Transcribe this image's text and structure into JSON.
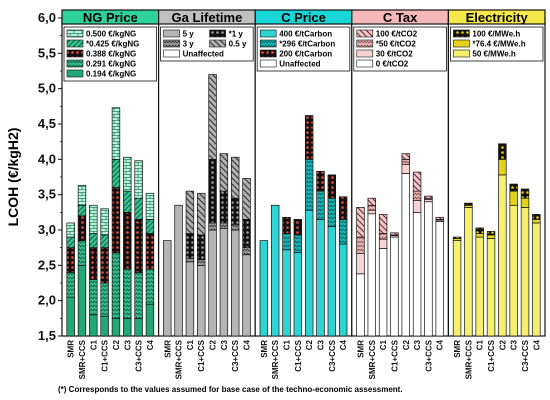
{
  "chart_data": {
    "type": "bar",
    "ylabel": "LCOH (€/kgH2)",
    "ylim": [
      1.5,
      6.0
    ],
    "yticks": [
      "6,0",
      "5,5",
      "5,0",
      "4,5",
      "4,0",
      "3,5",
      "3,0",
      "2,5",
      "2,0",
      "1,5"
    ],
    "grid": false,
    "categories": [
      "SMR",
      "SMR+CCS",
      "C1",
      "C1+CCS",
      "C2",
      "C3",
      "C3+CCS",
      "C4"
    ],
    "footnote": "(*) Corresponds to the values assumed for base case of the techno-economic assessment.",
    "panels": [
      {
        "title": "NG Price",
        "header_color": "#2ed39b",
        "legend": [
          {
            "label": "0.500 €/kgNG",
            "color": "#34b98a"
          },
          {
            "label": "*0.425 €/kgNG",
            "color": "#2ea57e"
          },
          {
            "label": "0.388 €/kgNG",
            "color": "#c0392b"
          },
          {
            "label": "0.291 €/kgNG",
            "color": "#3cb98e"
          },
          {
            "label": "0.194 €/kgNG",
            "color": "#5fd2aa"
          }
        ],
        "series": [
          {
            "name": "0.194 €/kgNG",
            "values": [
              2.05,
              2.5,
              1.8,
              1.78,
              1.75,
              1.75,
              1.75,
              1.95
            ]
          },
          {
            "name": "0.291 €/kgNG",
            "values": [
              2.4,
              2.85,
              2.3,
              2.25,
              2.68,
              2.45,
              2.4,
              2.45
            ]
          },
          {
            "name": "0.388 €/kgNG",
            "values": [
              2.75,
              3.2,
              2.75,
              2.75,
              3.6,
              3.25,
              3.15,
              2.95
            ]
          },
          {
            "name": "*0.425 €/kgNG",
            "values": [
              2.9,
              3.35,
              2.95,
              2.93,
              4.0,
              3.55,
              3.45,
              3.15
            ]
          },
          {
            "name": "0.500 €/kgNG",
            "values": [
              3.1,
              3.63,
              3.35,
              3.3,
              4.73,
              4.03,
              3.98,
              3.52
            ]
          }
        ]
      },
      {
        "title": "Ga Lifetime",
        "header_color": "#c0c0c0",
        "legend": [
          {
            "label": "5 y",
            "color": "#a8a8a8"
          },
          {
            "label": "*1 y",
            "color": "#1a1a1a"
          },
          {
            "label": "3 y",
            "color": "#8c8c8c"
          },
          {
            "label": "0.5 y",
            "color": "#9a9a9a"
          },
          {
            "label": "Unaffected",
            "color": "#ffffff"
          }
        ],
        "series": [
          {
            "name": "5 y",
            "values": [
              2.85,
              3.35,
              2.55,
              2.5,
              3.0,
              3.02,
              3.0,
              2.65
            ]
          },
          {
            "name": "3 y",
            "values": [
              2.85,
              3.35,
              2.6,
              2.58,
              3.1,
              3.1,
              3.08,
              2.75
            ]
          },
          {
            "name": "*1 y",
            "values": [
              2.85,
              3.35,
              2.95,
              2.93,
              4.0,
              3.55,
              3.45,
              3.15
            ]
          },
          {
            "name": "0.5 y",
            "values": [
              2.85,
              3.35,
              3.55,
              3.52,
              5.2,
              4.08,
              4.03,
              3.73
            ]
          }
        ]
      },
      {
        "title": "C Price",
        "header_color": "#19d6d6",
        "legend": [
          {
            "label": "400 €/tCarbon",
            "color": "#2dd6d6"
          },
          {
            "label": "*296 €/tCarbon",
            "color": "#1ab8b8"
          },
          {
            "label": "200 €/tCarbon",
            "color": "#c0392b"
          },
          {
            "label": "Unaffected",
            "color": "#ffffff"
          }
        ],
        "series": [
          {
            "name": "400 €/tCarbon",
            "values": [
              2.85,
              3.35,
              2.72,
              2.68,
              3.28,
              3.15,
              3.05,
              2.8
            ]
          },
          {
            "name": "*296 €/tCarbon",
            "values": [
              2.85,
              3.35,
              2.95,
              2.93,
              4.0,
              3.55,
              3.45,
              3.15
            ]
          },
          {
            "name": "200 €/tCarbon",
            "values": [
              2.85,
              3.35,
              3.18,
              3.15,
              4.62,
              3.83,
              3.78,
              3.47
            ]
          }
        ]
      },
      {
        "title": "C Tax",
        "header_color": "#f5b8b8",
        "legend": [
          {
            "label": "100 €/tCO2",
            "color": "#f2c8c8"
          },
          {
            "label": "*50 €/tCO2",
            "color": "#e0b0b0"
          },
          {
            "label": "30 €/tCO2",
            "color": "#f4cccc"
          },
          {
            "label": "0 €/tCO2",
            "color": "#ffffff"
          }
        ],
        "series": [
          {
            "name": "0 €/tCO2",
            "values": [
              2.38,
              3.23,
              2.74,
              2.9,
              3.8,
              3.25,
              3.4,
              3.12
            ]
          },
          {
            "name": "30 €/tCO2",
            "values": [
              2.67,
              3.28,
              2.87,
              2.92,
              3.93,
              3.42,
              3.43,
              3.14
            ]
          },
          {
            "name": "*50 €/tCO2",
            "values": [
              2.9,
              3.35,
              2.95,
              2.93,
              4.0,
              3.55,
              3.45,
              3.15
            ]
          },
          {
            "name": "100 €/tCO2",
            "values": [
              3.32,
              3.45,
              3.22,
              2.96,
              4.08,
              3.82,
              3.48,
              3.18
            ]
          }
        ]
      },
      {
        "title": "Electricity",
        "header_color": "#f5e94c",
        "legend": [
          {
            "label": "100 €/MWe.h",
            "color": "#c8b400"
          },
          {
            "label": "*76.4 €/MWe.h",
            "color": "#e8d000"
          },
          {
            "label": "50 €/MWe.h",
            "color": "#f5ef6e"
          }
        ],
        "series": [
          {
            "name": "50 €/MWe.h",
            "values": [
              2.85,
              3.32,
              2.9,
              2.88,
              3.78,
              3.35,
              3.32,
              3.1
            ]
          },
          {
            "name": "*76.4 €/MWe.h",
            "values": [
              2.88,
              3.35,
              2.95,
              2.93,
              4.0,
              3.55,
              3.45,
              3.15
            ]
          },
          {
            "name": "100 €/MWe.h",
            "values": [
              2.9,
              3.38,
              3.03,
              2.98,
              4.22,
              3.65,
              3.58,
              3.22
            ]
          }
        ]
      }
    ]
  }
}
